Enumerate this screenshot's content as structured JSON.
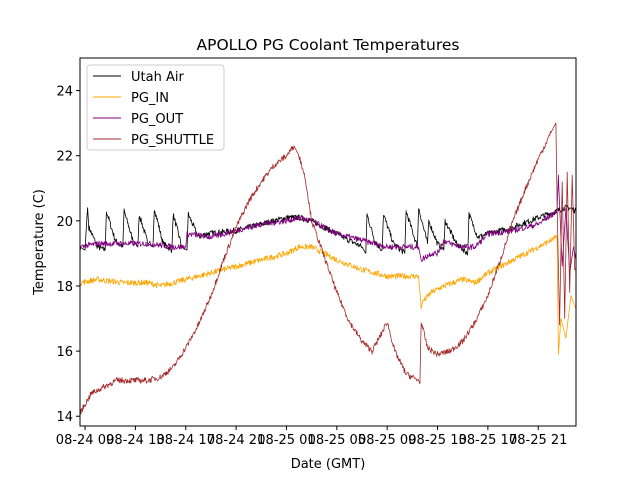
{
  "chart_data": {
    "type": "line",
    "title": "APOLLO PG Coolant Temperatures",
    "xlabel": "Date (GMT)",
    "ylabel": "Temperature (C)",
    "x_units": "hours since 08-24 09:00 GMT",
    "xlim": [
      -0.4,
      39.0
    ],
    "ylim": [
      13.7,
      25.0
    ],
    "grid": false,
    "legend_position": "top-left",
    "x_ticks": [
      {
        "value": 0,
        "label": "08-24 09"
      },
      {
        "value": 4,
        "label": "08-24 13"
      },
      {
        "value": 8,
        "label": "08-24 17"
      },
      {
        "value": 12,
        "label": "08-24 21"
      },
      {
        "value": 16,
        "label": "08-25 01"
      },
      {
        "value": 20,
        "label": "08-25 05"
      },
      {
        "value": 24,
        "label": "08-25 09"
      },
      {
        "value": 28,
        "label": "08-25 13"
      },
      {
        "value": 32,
        "label": "08-25 17"
      },
      {
        "value": 36,
        "label": "08-25 21"
      }
    ],
    "y_ticks": [
      {
        "value": 14,
        "label": "14"
      },
      {
        "value": 16,
        "label": "16"
      },
      {
        "value": 18,
        "label": "18"
      },
      {
        "value": 20,
        "label": "20"
      },
      {
        "value": 22,
        "label": "22"
      },
      {
        "value": 24,
        "label": "24"
      }
    ],
    "series": [
      {
        "name": "Utah Air",
        "color": "#000000",
        "x": [
          -0.4,
          0.0,
          0.2,
          0.3,
          1.0,
          1.6,
          1.7,
          2.4,
          3.0,
          3.1,
          3.8,
          4.2,
          4.3,
          5.0,
          5.4,
          5.5,
          6.2,
          6.9,
          7.0,
          7.7,
          8.1,
          8.2,
          9.0,
          9.6,
          12.0,
          14.0,
          16.0,
          17.0,
          18.0,
          19.0,
          20.0,
          21.0,
          22.0,
          22.3,
          22.4,
          23.0,
          23.6,
          23.7,
          24.5,
          25.4,
          25.5,
          26.4,
          26.5,
          27.2,
          27.3,
          28.0,
          28.5,
          28.6,
          29.5,
          30.4,
          30.5,
          31.2,
          32.0,
          34.0,
          36.0,
          37.5,
          38.0,
          38.5,
          39.0
        ],
        "y": [
          19.2,
          19.1,
          20.4,
          19.8,
          19.2,
          19.1,
          20.3,
          19.4,
          19.2,
          20.3,
          19.4,
          19.2,
          20.2,
          19.3,
          19.2,
          20.4,
          19.3,
          19.1,
          20.2,
          19.2,
          19.1,
          20.2,
          19.5,
          19.6,
          19.7,
          19.9,
          20.1,
          20.1,
          20.0,
          19.8,
          19.6,
          19.4,
          19.2,
          19.0,
          20.2,
          19.4,
          19.1,
          20.2,
          19.3,
          19.0,
          20.3,
          19.2,
          20.4,
          19.3,
          20.0,
          19.3,
          19.1,
          20.0,
          19.3,
          19.0,
          20.2,
          19.5,
          19.6,
          19.8,
          20.1,
          20.3,
          20.4,
          20.4,
          20.3
        ]
      },
      {
        "name": "PG_IN",
        "color": "#FFA500",
        "x": [
          -0.4,
          1.0,
          3.0,
          5.0,
          6.0,
          8.0,
          10.0,
          12.0,
          14.0,
          16.0,
          17.0,
          18.0,
          19.0,
          20.0,
          22.0,
          24.0,
          26.5,
          26.7,
          26.8,
          27.5,
          28.5,
          30.0,
          31.0,
          32.0,
          33.0,
          34.0,
          35.0,
          36.0,
          37.5,
          37.6,
          37.8,
          38.2,
          38.6,
          39.0
        ],
        "y": [
          18.1,
          18.2,
          18.1,
          18.1,
          18.0,
          18.2,
          18.4,
          18.6,
          18.8,
          19.0,
          19.2,
          19.2,
          19.0,
          18.8,
          18.5,
          18.3,
          18.3,
          17.3,
          17.5,
          17.8,
          18.0,
          18.2,
          18.1,
          18.4,
          18.6,
          18.8,
          19.0,
          19.2,
          19.5,
          15.9,
          17.0,
          16.4,
          17.7,
          17.3
        ]
      },
      {
        "name": "PG_OUT",
        "color": "#800080",
        "x": [
          -0.4,
          1.0,
          3.0,
          5.0,
          7.0,
          8.0,
          8.1,
          10.0,
          12.0,
          14.0,
          16.0,
          17.0,
          18.0,
          20.0,
          22.0,
          24.0,
          26.5,
          26.7,
          27.5,
          28.0,
          28.5,
          29.0,
          30.0,
          31.0,
          32.0,
          34.0,
          36.0,
          37.5,
          37.6,
          37.9,
          38.2,
          38.5,
          38.8,
          39.0
        ],
        "y": [
          19.2,
          19.3,
          19.3,
          19.3,
          19.2,
          19.2,
          19.6,
          19.5,
          19.7,
          19.9,
          20.0,
          20.1,
          20.0,
          19.6,
          19.4,
          19.2,
          19.2,
          18.8,
          19.0,
          19.0,
          19.4,
          19.3,
          19.2,
          19.2,
          19.6,
          19.7,
          19.9,
          20.3,
          21.4,
          18.6,
          20.4,
          18.4,
          19.2,
          18.8
        ]
      },
      {
        "name": "PG_SHUTTLE",
        "color": "#A52A2A",
        "x": [
          -0.4,
          0.5,
          1.5,
          2.5,
          4.0,
          5.0,
          6.0,
          7.0,
          8.0,
          9.0,
          10.0,
          11.0,
          12.0,
          13.0,
          14.0,
          15.0,
          16.0,
          16.6,
          17.0,
          17.5,
          18.0,
          19.0,
          20.0,
          21.0,
          22.0,
          22.8,
          23.5,
          24.0,
          24.6,
          25.5,
          26.5,
          26.6,
          26.7,
          27.2,
          28.0,
          29.0,
          30.0,
          31.0,
          32.0,
          33.0,
          34.0,
          35.0,
          36.0,
          37.0,
          37.4,
          37.5,
          37.7,
          37.9,
          38.1,
          38.3,
          38.5,
          38.7,
          38.9,
          39.0
        ],
        "y": [
          14.1,
          14.7,
          14.9,
          15.1,
          15.1,
          15.1,
          15.2,
          15.5,
          16.1,
          16.8,
          17.7,
          18.8,
          19.8,
          20.6,
          21.2,
          21.7,
          22.0,
          22.3,
          22.0,
          21.3,
          20.0,
          18.9,
          17.8,
          16.9,
          16.3,
          16.0,
          16.5,
          16.9,
          16.0,
          15.3,
          15.1,
          15.0,
          16.9,
          16.1,
          15.9,
          16.0,
          16.3,
          16.9,
          17.7,
          18.8,
          20.0,
          21.0,
          21.9,
          22.7,
          23.0,
          20.5,
          16.8,
          21.2,
          17.0,
          21.5,
          17.8,
          21.4,
          18.5,
          18.5
        ]
      }
    ]
  }
}
